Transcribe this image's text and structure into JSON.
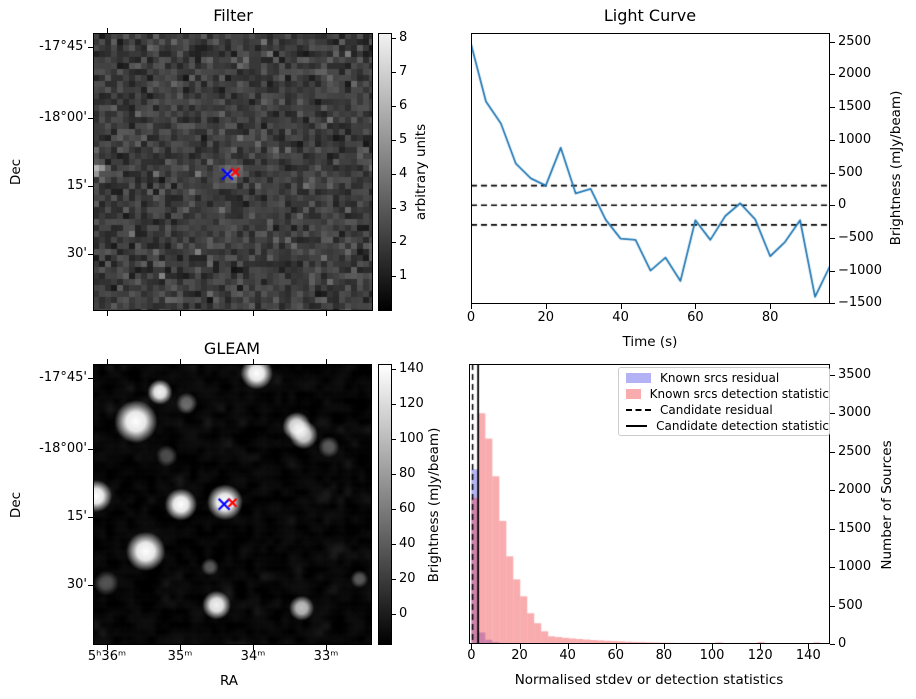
{
  "figure": {
    "background": "#ffffff"
  },
  "chart_data": [
    {
      "type": "heatmap",
      "title": "Filter",
      "ylabel": "Dec",
      "ytick_labels": [
        "-17°45'",
        "-18°00'",
        "15'",
        "30'"
      ],
      "colorbar": {
        "label": "arbitrary units",
        "ticks": [
          "8",
          "7",
          "6",
          "5",
          "4",
          "3",
          "2",
          "1"
        ],
        "range": [
          0,
          8.3
        ]
      },
      "description": "grayscale noise map with faint bright patch at centre and bright pixel at left edge",
      "markers": [
        {
          "shape": "x",
          "color": "#0000ff",
          "x": 0.48,
          "y": 0.508,
          "size": 5.5
        },
        {
          "shape": "x",
          "color": "#ff0000",
          "x": 0.508,
          "y": 0.5,
          "size": 4
        }
      ]
    },
    {
      "type": "line",
      "title": "Light Curve",
      "xlabel": "Time (s)",
      "ylabel": "Brightness (mJy/beam)",
      "xticks": [
        "0",
        "20",
        "40",
        "60",
        "80"
      ],
      "xtick_values": [
        0,
        20,
        40,
        60,
        80
      ],
      "yticks": [
        "2500",
        "2000",
        "1500",
        "1000",
        "500",
        "0",
        "−500",
        "−1000",
        "−1500"
      ],
      "ytick_values": [
        2500,
        2000,
        1500,
        1000,
        500,
        0,
        -500,
        -1000,
        -1500
      ],
      "xlim": [
        0,
        96
      ],
      "ylim": [
        -1510,
        2633
      ],
      "line_color": "#1f77b4",
      "threshold_lines": [
        300,
        0,
        -300
      ],
      "x": [
        0,
        4,
        8,
        12,
        16,
        20,
        24,
        28,
        32,
        36,
        40,
        44,
        48,
        52,
        56,
        60,
        64,
        68,
        72,
        76,
        80,
        84,
        88,
        92,
        96
      ],
      "y": [
        2465,
        1585,
        1250,
        635,
        410,
        300,
        880,
        180,
        250,
        -220,
        -510,
        -530,
        -1000,
        -800,
        -1160,
        -230,
        -530,
        -165,
        30,
        -215,
        -780,
        -560,
        -230,
        -1400,
        -930
      ]
    },
    {
      "type": "heatmap",
      "title": "GLEAM",
      "xlabel": "RA",
      "ylabel": "Dec",
      "xtick_labels": [
        "5ʰ36ᵐ",
        "35ᵐ",
        "34ᵐ",
        "33ᵐ"
      ],
      "ytick_labels": [
        "-17°45'",
        "-18°00'",
        "15'",
        "30'"
      ],
      "colorbar": {
        "label": "Brightness (mJy/beam)",
        "ticks": [
          "140",
          "120",
          "100",
          "80",
          "60",
          "40",
          "20",
          "0"
        ],
        "range": [
          -17,
          143
        ]
      },
      "sources": [
        {
          "x": 0.587,
          "y": 0.033,
          "r": 9,
          "b": 1
        },
        {
          "x": 0.24,
          "y": 0.1,
          "r": 7,
          "b": 0.95
        },
        {
          "x": 0.154,
          "y": 0.205,
          "r": 12,
          "b": 1
        },
        {
          "x": 0.336,
          "y": 0.14,
          "r": 6,
          "b": 0.4
        },
        {
          "x": 0.73,
          "y": 0.222,
          "r": 8,
          "b": 0.9
        },
        {
          "x": 0.755,
          "y": 0.252,
          "r": 8,
          "b": 0.85
        },
        {
          "x": 0.845,
          "y": 0.295,
          "r": 6,
          "b": 0.35
        },
        {
          "x": 0.264,
          "y": 0.327,
          "r": 6,
          "b": 0.3
        },
        {
          "x": 0.011,
          "y": 0.47,
          "r": 9,
          "b": 1
        },
        {
          "x": 0.315,
          "y": 0.5,
          "r": 9,
          "b": 1
        },
        {
          "x": 0.473,
          "y": 0.492,
          "r": 10,
          "b": 1
        },
        {
          "x": 0.189,
          "y": 0.667,
          "r": 11,
          "b": 1
        },
        {
          "x": 0.419,
          "y": 0.722,
          "r": 5,
          "b": 0.35
        },
        {
          "x": 0.047,
          "y": 0.78,
          "r": 7,
          "b": 0.3
        },
        {
          "x": 0.955,
          "y": 0.765,
          "r": 5,
          "b": 0.35
        },
        {
          "x": 0.443,
          "y": 0.858,
          "r": 8,
          "b": 0.95
        },
        {
          "x": 0.748,
          "y": 0.869,
          "r": 7,
          "b": 0.75
        }
      ],
      "markers": [
        {
          "shape": "x",
          "color": "#0000ff",
          "x": 0.47,
          "y": 0.499,
          "size": 5.5
        },
        {
          "shape": "x",
          "color": "#ff0000",
          "x": 0.5,
          "y": 0.494,
          "size": 4
        }
      ]
    },
    {
      "type": "bar",
      "title": "",
      "xlabel": "Normalised stdev or detection statistics",
      "ylabel": "Number of Sources",
      "xticks": [
        "0",
        "20",
        "40",
        "60",
        "80",
        "100",
        "120",
        "140"
      ],
      "xtick_values": [
        0,
        20,
        40,
        60,
        80,
        100,
        120,
        140
      ],
      "yticks": [
        "0",
        "500",
        "1000",
        "1500",
        "2000",
        "2500",
        "3000",
        "3500"
      ],
      "ytick_values": [
        0,
        500,
        1000,
        1500,
        2000,
        2500,
        3000,
        3500
      ],
      "xlim": [
        -1,
        149
      ],
      "ylim": [
        0,
        3640
      ],
      "bin_width": 2.9,
      "series": [
        {
          "name": "Known srcs residual",
          "color": "rgba(85,85,230,0.45)",
          "values": [
            2270,
            150,
            55,
            25,
            12,
            6,
            3,
            2,
            1,
            0,
            0,
            0,
            0,
            0,
            0,
            0,
            0,
            0,
            0,
            0,
            0,
            0,
            0,
            0,
            0,
            0,
            0,
            0,
            0,
            0,
            0,
            0,
            0,
            0,
            0,
            0,
            0,
            0,
            0,
            0,
            0,
            0,
            0,
            0,
            0,
            0,
            0,
            0,
            0,
            0
          ]
        },
        {
          "name": "Known srcs detection statistic",
          "color": "rgba(242,70,76,0.45)",
          "values": [
            1900,
            3000,
            2670,
            2180,
            1600,
            1140,
            840,
            620,
            400,
            270,
            165,
            100,
            90,
            80,
            72,
            65,
            58,
            52,
            47,
            42,
            38,
            35,
            30,
            27,
            24,
            21,
            19,
            17,
            15,
            13,
            11,
            9,
            8,
            7,
            6,
            20,
            5,
            4,
            3,
            3,
            3,
            25,
            3,
            2,
            2,
            2,
            2,
            2,
            2,
            20
          ]
        }
      ],
      "lines": [
        {
          "name": "Candidate residual",
          "style": "dashed",
          "x": 0.5
        },
        {
          "name": "Candidate detection statistic",
          "style": "solid",
          "x": 2.8
        }
      ]
    }
  ]
}
